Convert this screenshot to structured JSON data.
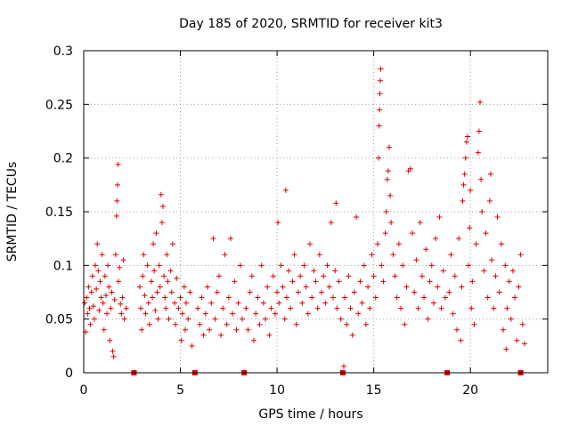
{
  "chart_data": {
    "type": "scatter",
    "title": "Day 185 of 2020, SRMTID for receiver kit3",
    "xlabel": "GPS time / hours",
    "ylabel": "SRMTID / TECUs",
    "xlim": [
      0,
      24
    ],
    "ylim": [
      0,
      0.3
    ],
    "xticks": [
      0,
      5,
      10,
      15,
      20
    ],
    "xtick_labels": [
      "0",
      "5",
      "10",
      "15",
      "20"
    ],
    "yticks": [
      0,
      0.05,
      0.1,
      0.15,
      0.2,
      0.25,
      0.3
    ],
    "ytick_labels": [
      "0",
      "0.05",
      "0.1",
      "0.15",
      "0.2",
      "0.25",
      "0.3"
    ],
    "grid": true,
    "marker": "+",
    "color": "#e00000",
    "gap_markers_x": [
      2.6,
      5.75,
      8.3,
      13.4,
      18.8,
      22.6
    ],
    "points": [
      [
        0.05,
        0.065
      ],
      [
        0.1,
        0.038
      ],
      [
        0.15,
        0.07
      ],
      [
        0.2,
        0.055
      ],
      [
        0.25,
        0.08
      ],
      [
        0.3,
        0.06
      ],
      [
        0.35,
        0.045
      ],
      [
        0.4,
        0.075
      ],
      [
        0.45,
        0.09
      ],
      [
        0.5,
        0.062
      ],
      [
        0.55,
        0.05
      ],
      [
        0.6,
        0.1
      ],
      [
        0.65,
        0.078
      ],
      [
        0.7,
        0.12
      ],
      [
        0.75,
        0.095
      ],
      [
        0.8,
        0.058
      ],
      [
        0.85,
        0.085
      ],
      [
        0.9,
        0.07
      ],
      [
        0.95,
        0.11
      ],
      [
        1.0,
        0.065
      ],
      [
        1.05,
        0.04
      ],
      [
        1.1,
        0.09
      ],
      [
        1.15,
        0.072
      ],
      [
        1.2,
        0.055
      ],
      [
        1.25,
        0.1
      ],
      [
        1.3,
        0.08
      ],
      [
        1.35,
        0.03
      ],
      [
        1.4,
        0.06
      ],
      [
        1.45,
        0.075
      ],
      [
        1.5,
        0.02
      ],
      [
        1.55,
        0.015
      ],
      [
        1.6,
        0.068
      ],
      [
        1.65,
        0.11
      ],
      [
        1.7,
        0.146
      ],
      [
        1.72,
        0.16
      ],
      [
        1.75,
        0.175
      ],
      [
        1.78,
        0.194
      ],
      [
        1.8,
        0.085
      ],
      [
        1.85,
        0.098
      ],
      [
        1.9,
        0.064
      ],
      [
        1.95,
        0.055
      ],
      [
        2.0,
        0.07
      ],
      [
        2.05,
        0.105
      ],
      [
        2.1,
        0.05
      ],
      [
        2.2,
        0.06
      ],
      [
        2.9,
        0.08
      ],
      [
        2.95,
        0.06
      ],
      [
        3.0,
        0.04
      ],
      [
        3.05,
        0.09
      ],
      [
        3.1,
        0.11
      ],
      [
        3.15,
        0.072
      ],
      [
        3.2,
        0.055
      ],
      [
        3.3,
        0.1
      ],
      [
        3.35,
        0.065
      ],
      [
        3.4,
        0.045
      ],
      [
        3.5,
        0.085
      ],
      [
        3.55,
        0.07
      ],
      [
        3.6,
        0.12
      ],
      [
        3.65,
        0.095
      ],
      [
        3.7,
        0.058
      ],
      [
        3.75,
        0.13
      ],
      [
        3.8,
        0.075
      ],
      [
        3.85,
        0.05
      ],
      [
        3.9,
        0.1
      ],
      [
        3.95,
        0.08
      ],
      [
        4.0,
        0.166
      ],
      [
        4.05,
        0.14
      ],
      [
        4.1,
        0.155
      ],
      [
        4.15,
        0.09
      ],
      [
        4.2,
        0.07
      ],
      [
        4.25,
        0.06
      ],
      [
        4.3,
        0.11
      ],
      [
        4.35,
        0.085
      ],
      [
        4.4,
        0.05
      ],
      [
        4.5,
        0.095
      ],
      [
        4.55,
        0.075
      ],
      [
        4.6,
        0.12
      ],
      [
        4.7,
        0.065
      ],
      [
        4.75,
        0.045
      ],
      [
        4.8,
        0.088
      ],
      [
        4.9,
        0.06
      ],
      [
        5.0,
        0.07
      ],
      [
        5.05,
        0.03
      ],
      [
        5.1,
        0.055
      ],
      [
        5.2,
        0.08
      ],
      [
        5.25,
        0.04
      ],
      [
        5.3,
        0.065
      ],
      [
        5.4,
        0.05
      ],
      [
        5.5,
        0.075
      ],
      [
        5.6,
        0.025
      ],
      [
        5.9,
        0.06
      ],
      [
        6.0,
        0.045
      ],
      [
        6.1,
        0.07
      ],
      [
        6.2,
        0.035
      ],
      [
        6.3,
        0.055
      ],
      [
        6.4,
        0.08
      ],
      [
        6.5,
        0.04
      ],
      [
        6.6,
        0.065
      ],
      [
        6.7,
        0.125
      ],
      [
        6.8,
        0.05
      ],
      [
        6.9,
        0.075
      ],
      [
        7.0,
        0.09
      ],
      [
        7.1,
        0.035
      ],
      [
        7.2,
        0.06
      ],
      [
        7.3,
        0.11
      ],
      [
        7.4,
        0.045
      ],
      [
        7.5,
        0.07
      ],
      [
        7.6,
        0.125
      ],
      [
        7.7,
        0.055
      ],
      [
        7.8,
        0.085
      ],
      [
        7.9,
        0.04
      ],
      [
        8.0,
        0.065
      ],
      [
        8.1,
        0.1
      ],
      [
        8.2,
        0.05
      ],
      [
        8.4,
        0.06
      ],
      [
        8.5,
        0.04
      ],
      [
        8.6,
        0.075
      ],
      [
        8.7,
        0.09
      ],
      [
        8.8,
        0.03
      ],
      [
        8.9,
        0.055
      ],
      [
        9.0,
        0.07
      ],
      [
        9.1,
        0.045
      ],
      [
        9.2,
        0.1
      ],
      [
        9.3,
        0.065
      ],
      [
        9.4,
        0.05
      ],
      [
        9.5,
        0.08
      ],
      [
        9.6,
        0.035
      ],
      [
        9.7,
        0.06
      ],
      [
        9.8,
        0.09
      ],
      [
        9.9,
        0.055
      ],
      [
        10.0,
        0.075
      ],
      [
        10.05,
        0.14
      ],
      [
        10.1,
        0.065
      ],
      [
        10.2,
        0.1
      ],
      [
        10.3,
        0.08
      ],
      [
        10.4,
        0.05
      ],
      [
        10.45,
        0.17
      ],
      [
        10.5,
        0.07
      ],
      [
        10.6,
        0.095
      ],
      [
        10.7,
        0.06
      ],
      [
        10.8,
        0.085
      ],
      [
        10.9,
        0.11
      ],
      [
        11.0,
        0.045
      ],
      [
        11.1,
        0.075
      ],
      [
        11.2,
        0.09
      ],
      [
        11.3,
        0.065
      ],
      [
        11.4,
        0.1
      ],
      [
        11.5,
        0.08
      ],
      [
        11.6,
        0.055
      ],
      [
        11.7,
        0.12
      ],
      [
        11.8,
        0.07
      ],
      [
        11.9,
        0.095
      ],
      [
        12.0,
        0.085
      ],
      [
        12.1,
        0.06
      ],
      [
        12.2,
        0.11
      ],
      [
        12.3,
        0.075
      ],
      [
        12.4,
        0.09
      ],
      [
        12.5,
        0.065
      ],
      [
        12.6,
        0.1
      ],
      [
        12.7,
        0.08
      ],
      [
        12.8,
        0.14
      ],
      [
        12.9,
        0.07
      ],
      [
        13.0,
        0.095
      ],
      [
        13.05,
        0.158
      ],
      [
        13.1,
        0.06
      ],
      [
        13.2,
        0.085
      ],
      [
        13.3,
        0.05
      ],
      [
        13.45,
        0.006
      ],
      [
        13.5,
        0.07
      ],
      [
        13.6,
        0.045
      ],
      [
        13.7,
        0.09
      ],
      [
        13.8,
        0.06
      ],
      [
        13.9,
        0.035
      ],
      [
        14.0,
        0.075
      ],
      [
        14.1,
        0.145
      ],
      [
        14.2,
        0.055
      ],
      [
        14.3,
        0.085
      ],
      [
        14.4,
        0.065
      ],
      [
        14.5,
        0.1
      ],
      [
        14.6,
        0.045
      ],
      [
        14.7,
        0.08
      ],
      [
        14.8,
        0.06
      ],
      [
        14.9,
        0.11
      ],
      [
        15.0,
        0.09
      ],
      [
        15.1,
        0.07
      ],
      [
        15.2,
        0.12
      ],
      [
        15.25,
        0.2
      ],
      [
        15.28,
        0.23
      ],
      [
        15.3,
        0.245
      ],
      [
        15.32,
        0.26
      ],
      [
        15.34,
        0.272
      ],
      [
        15.36,
        0.283
      ],
      [
        15.4,
        0.1
      ],
      [
        15.5,
        0.085
      ],
      [
        15.6,
        0.13
      ],
      [
        15.65,
        0.15
      ],
      [
        15.7,
        0.18
      ],
      [
        15.75,
        0.188
      ],
      [
        15.8,
        0.21
      ],
      [
        15.85,
        0.165
      ],
      [
        15.9,
        0.14
      ],
      [
        16.0,
        0.11
      ],
      [
        16.1,
        0.09
      ],
      [
        16.2,
        0.07
      ],
      [
        16.3,
        0.12
      ],
      [
        16.4,
        0.06
      ],
      [
        16.5,
        0.1
      ],
      [
        16.6,
        0.045
      ],
      [
        16.7,
        0.08
      ],
      [
        16.8,
        0.188
      ],
      [
        16.9,
        0.19
      ],
      [
        17.0,
        0.13
      ],
      [
        17.1,
        0.075
      ],
      [
        17.2,
        0.105
      ],
      [
        17.3,
        0.06
      ],
      [
        17.4,
        0.14
      ],
      [
        17.5,
        0.09
      ],
      [
        17.6,
        0.07
      ],
      [
        17.7,
        0.115
      ],
      [
        17.8,
        0.05
      ],
      [
        17.9,
        0.085
      ],
      [
        18.0,
        0.1
      ],
      [
        18.1,
        0.065
      ],
      [
        18.2,
        0.125
      ],
      [
        18.3,
        0.08
      ],
      [
        18.4,
        0.145
      ],
      [
        18.5,
        0.06
      ],
      [
        18.6,
        0.095
      ],
      [
        18.7,
        0.07
      ],
      [
        18.9,
        0.075
      ],
      [
        19.0,
        0.11
      ],
      [
        19.1,
        0.055
      ],
      [
        19.2,
        0.09
      ],
      [
        19.3,
        0.04
      ],
      [
        19.4,
        0.125
      ],
      [
        19.5,
        0.03
      ],
      [
        19.55,
        0.08
      ],
      [
        19.6,
        0.16
      ],
      [
        19.65,
        0.175
      ],
      [
        19.7,
        0.185
      ],
      [
        19.75,
        0.2
      ],
      [
        19.8,
        0.215
      ],
      [
        19.85,
        0.22
      ],
      [
        19.9,
        0.1
      ],
      [
        19.95,
        0.135
      ],
      [
        20.0,
        0.17
      ],
      [
        20.05,
        0.06
      ],
      [
        20.1,
        0.085
      ],
      [
        20.2,
        0.045
      ],
      [
        20.3,
        0.12
      ],
      [
        20.4,
        0.205
      ],
      [
        20.45,
        0.225
      ],
      [
        20.5,
        0.252
      ],
      [
        20.55,
        0.18
      ],
      [
        20.6,
        0.15
      ],
      [
        20.7,
        0.095
      ],
      [
        20.8,
        0.13
      ],
      [
        20.9,
        0.07
      ],
      [
        21.0,
        0.16
      ],
      [
        21.05,
        0.185
      ],
      [
        21.1,
        0.105
      ],
      [
        21.2,
        0.06
      ],
      [
        21.3,
        0.09
      ],
      [
        21.4,
        0.145
      ],
      [
        21.5,
        0.075
      ],
      [
        21.6,
        0.12
      ],
      [
        21.7,
        0.04
      ],
      [
        21.8,
        0.1
      ],
      [
        21.85,
        0.022
      ],
      [
        21.9,
        0.06
      ],
      [
        22.0,
        0.085
      ],
      [
        22.1,
        0.05
      ],
      [
        22.2,
        0.095
      ],
      [
        22.3,
        0.07
      ],
      [
        22.4,
        0.03
      ],
      [
        22.5,
        0.08
      ],
      [
        22.6,
        0.11
      ],
      [
        22.7,
        0.045
      ],
      [
        22.8,
        0.027
      ]
    ]
  }
}
